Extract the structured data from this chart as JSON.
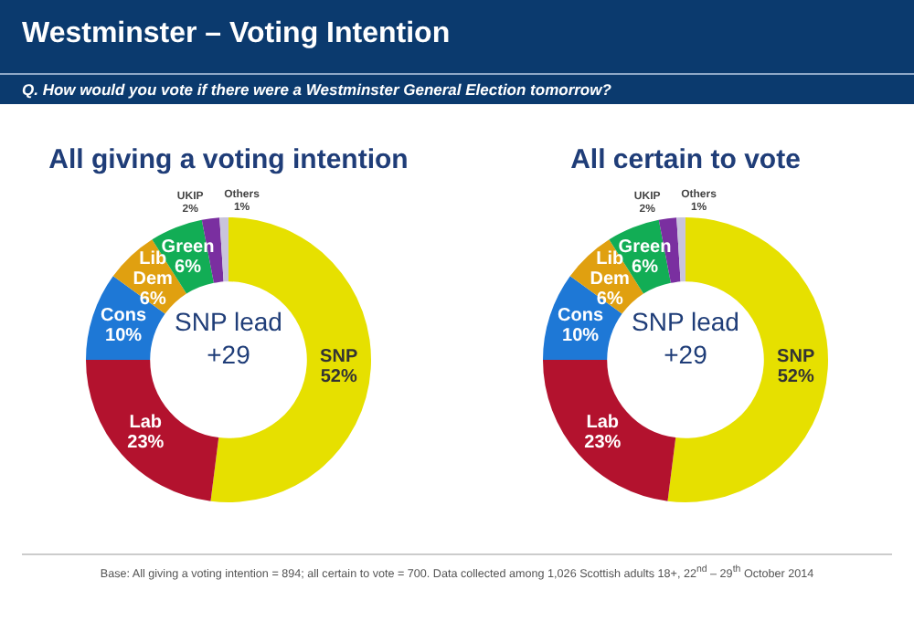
{
  "chart_data": [
    {
      "type": "other",
      "title": "Westminster – Voting Intention",
      "subtitle": "Q. How would you vote if there were a Westminster General Election tomorrow?"
    },
    {
      "type": "donut",
      "title": "All giving a voting intention",
      "categories": [
        "SNP",
        "Lab",
        "Cons",
        "Lib Dem",
        "Green",
        "UKIP",
        "Others"
      ],
      "values": [
        52,
        23,
        10,
        6,
        6,
        2,
        1
      ],
      "value_labels": [
        "52%",
        "23%",
        "10%",
        "6%",
        "6%",
        "2%",
        "1%"
      ],
      "colors": [
        "#e6e000",
        "#b3122e",
        "#1e78d6",
        "#e0a010",
        "#12ad55",
        "#7a2fa0",
        "#c9c4dc"
      ],
      "annotations": [
        "SNP lead +29"
      ]
    },
    {
      "type": "donut",
      "title": "All certain to vote",
      "categories": [
        "SNP",
        "Lab",
        "Cons",
        "Lib Dem",
        "Green",
        "UKIP",
        "Others"
      ],
      "values": [
        52,
        23,
        10,
        6,
        6,
        2,
        1
      ],
      "value_labels": [
        "52%",
        "23%",
        "10%",
        "6%",
        "6%",
        "2%",
        "1%"
      ],
      "colors": [
        "#e6e000",
        "#b3122e",
        "#1e78d6",
        "#e0a010",
        "#12ad55",
        "#7a2fa0",
        "#c9c4dc"
      ],
      "annotations": [
        "SNP lead +29"
      ]
    },
    {
      "type": "other",
      "annotations": [
        "Base: All giving a voting intention = 894; all certain to vote = 700. Data collected among 1,026 Scottish adults 18+, 22$^{nd}$ – 29$^{th}$ October 2014"
      ]
    }
  ]
}
